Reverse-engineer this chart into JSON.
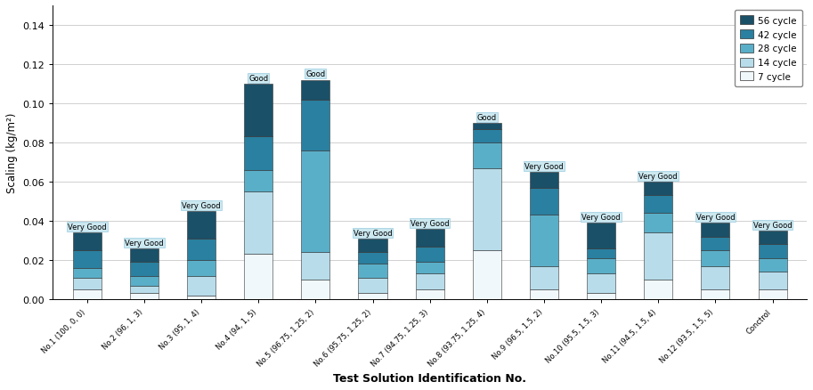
{
  "categories": [
    "No.1 (100, 0, 0)",
    "No.2 (96, 1, 3)",
    "No.3 (95, 1, 4)",
    "No.4 (94, 1, 5)",
    "No.5 (96.75, 1.25, 2)",
    "No.6 (95.75, 1.25, 2)",
    "No.7 (94.75, 1.25, 3)",
    "No.8 (93.75, 1.25, 4)",
    "No.9 (96.5, 1.5, 2)",
    "No.10 (95.5, 1.5, 3)",
    "No.11 (94.5, 1.5, 4)",
    "No.12 (93.5, 1.5, 5)",
    "Conctrol"
  ],
  "cycle_labels": [
    "7 cycle",
    "14 cycle",
    "28 cycle",
    "42 cycle",
    "56 cycle"
  ],
  "colors": [
    "#f0f8fc",
    "#b8dcea",
    "#5aafc8",
    "#2980a0",
    "#1a5068"
  ],
  "data": [
    [
      0.005,
      0.006,
      0.005,
      0.009,
      0.009
    ],
    [
      0.003,
      0.004,
      0.005,
      0.007,
      0.007
    ],
    [
      0.002,
      0.01,
      0.008,
      0.011,
      0.014
    ],
    [
      0.023,
      0.032,
      0.011,
      0.017,
      0.027
    ],
    [
      0.01,
      0.014,
      0.052,
      0.026,
      0.01
    ],
    [
      0.003,
      0.008,
      0.007,
      0.006,
      0.007
    ],
    [
      0.005,
      0.008,
      0.006,
      0.008,
      0.009
    ],
    [
      0.025,
      0.042,
      0.013,
      0.007,
      0.003
    ],
    [
      0.005,
      0.012,
      0.026,
      0.014,
      0.008
    ],
    [
      0.003,
      0.01,
      0.008,
      0.005,
      0.013
    ],
    [
      0.01,
      0.024,
      0.01,
      0.009,
      0.007
    ],
    [
      0.005,
      0.012,
      0.008,
      0.007,
      0.007
    ],
    [
      0.005,
      0.009,
      0.007,
      0.007,
      0.007
    ]
  ],
  "annotations": [
    "Very Good",
    "Very Good",
    "Very Good",
    "Good",
    "Good",
    "Very Good",
    "Very Good",
    "Good",
    "Very Good",
    "Very Good",
    "Very Good",
    "Very Good",
    "Very Good"
  ],
  "ylabel": "Scaling (kg/m²)",
  "xlabel": "Test Solution Identification No.",
  "ylim": [
    0,
    0.15
  ],
  "yticks": [
    0.0,
    0.02,
    0.04,
    0.06,
    0.08,
    0.1,
    0.12,
    0.14
  ],
  "annotation_bg": "#cce8f0",
  "annotation_edge": "#99cce0",
  "grid_color": "#d0d0d0",
  "bar_width": 0.5
}
